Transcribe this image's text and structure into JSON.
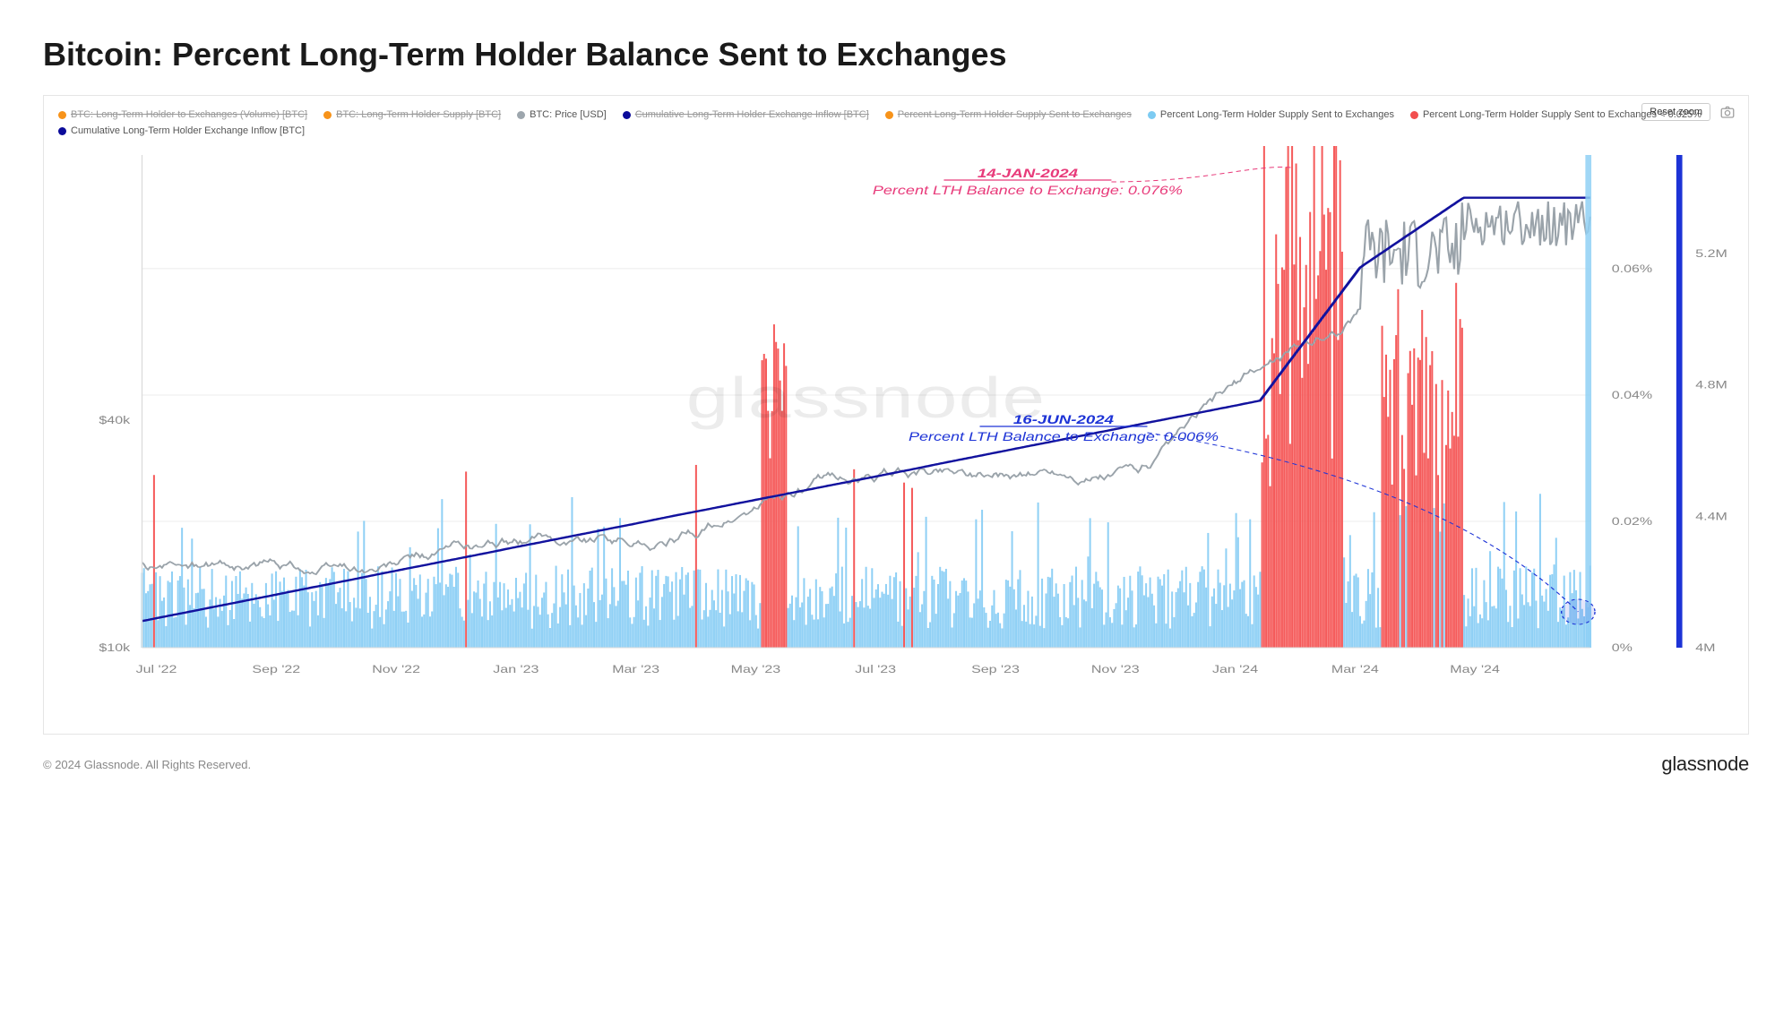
{
  "title": "Bitcoin: Percent Long-Term Holder Balance Sent to Exchanges",
  "copyright": "© 2024 Glassnode. All Rights Reserved.",
  "brand": "glassnode",
  "watermark": "glassnode",
  "reset_zoom": "Reset zoom",
  "legend": [
    {
      "label": "BTC: Long-Term Holder to Exchanges (Volume) [BTC]",
      "color": "#f7931a",
      "struck": true
    },
    {
      "label": "BTC: Long-Term Holder Supply [BTC]",
      "color": "#f7931a",
      "struck": true
    },
    {
      "label": "BTC: Price [USD]",
      "color": "#9da6ad",
      "struck": false
    },
    {
      "label": "Cumulative Long-Term Holder Exchange Inflow [BTC]",
      "color": "#0b0b9a",
      "struck": true
    },
    {
      "label": "Percent Long-Term Holder Supply Sent to Exchanges",
      "color": "#f7931a",
      "struck": true
    },
    {
      "label": "Percent Long-Term Holder Supply Sent to Exchanges",
      "color": "#7dcbf2",
      "struck": false
    },
    {
      "label": "Percent Long-Term Holder Supply Sent to Exchanges < 0.025%",
      "color": "#f24f4f",
      "struck": false
    },
    {
      "label": "Cumulative Long-Term Holder Exchange Inflow [BTC]",
      "color": "#0b0b9a",
      "struck": false
    }
  ],
  "colors": {
    "bars_low": "#8fd0f5",
    "bars_high": "#f55a5a",
    "price_line": "#9aa3aa",
    "cum_line": "#12129e",
    "grid": "#ececec",
    "axis_text": "#888888",
    "right_bar": "#8fd0f5",
    "far_right_bar": "#1d33d6"
  },
  "y_left": {
    "label_40k": "$40k",
    "label_10k": "$10k",
    "min": 10,
    "max": 75,
    "tick_40": 40,
    "tick_10": 10
  },
  "y_right_pct": {
    "ticks": [
      "0%",
      "0.02%",
      "0.04%",
      "0.06%"
    ],
    "values": [
      0,
      0.02,
      0.04,
      0.06
    ],
    "max": 0.078
  },
  "y_right_m": {
    "ticks": [
      "4M",
      "4.4M",
      "4.8M",
      "5.2M"
    ],
    "values": [
      4.0,
      4.4,
      4.8,
      5.2
    ],
    "min": 4.0,
    "max": 5.5
  },
  "x_ticks": [
    "Jul '22",
    "Sep '22",
    "Nov '22",
    "Jan '23",
    "Mar '23",
    "May '23",
    "Jul '23",
    "Sep '23",
    "Nov '23",
    "Jan '24",
    "Mar '24",
    "May '24"
  ],
  "annotations": {
    "jan": {
      "date": "14-JAN-2024",
      "text": "Percent LTH Balance to Exchange: 0.076%",
      "color": "#e83a7a"
    },
    "jun": {
      "date": "16-JUN-2024",
      "text": "Percent LTH Balance to Exchange: 0.006%",
      "color": "#1d33d6"
    }
  }
}
